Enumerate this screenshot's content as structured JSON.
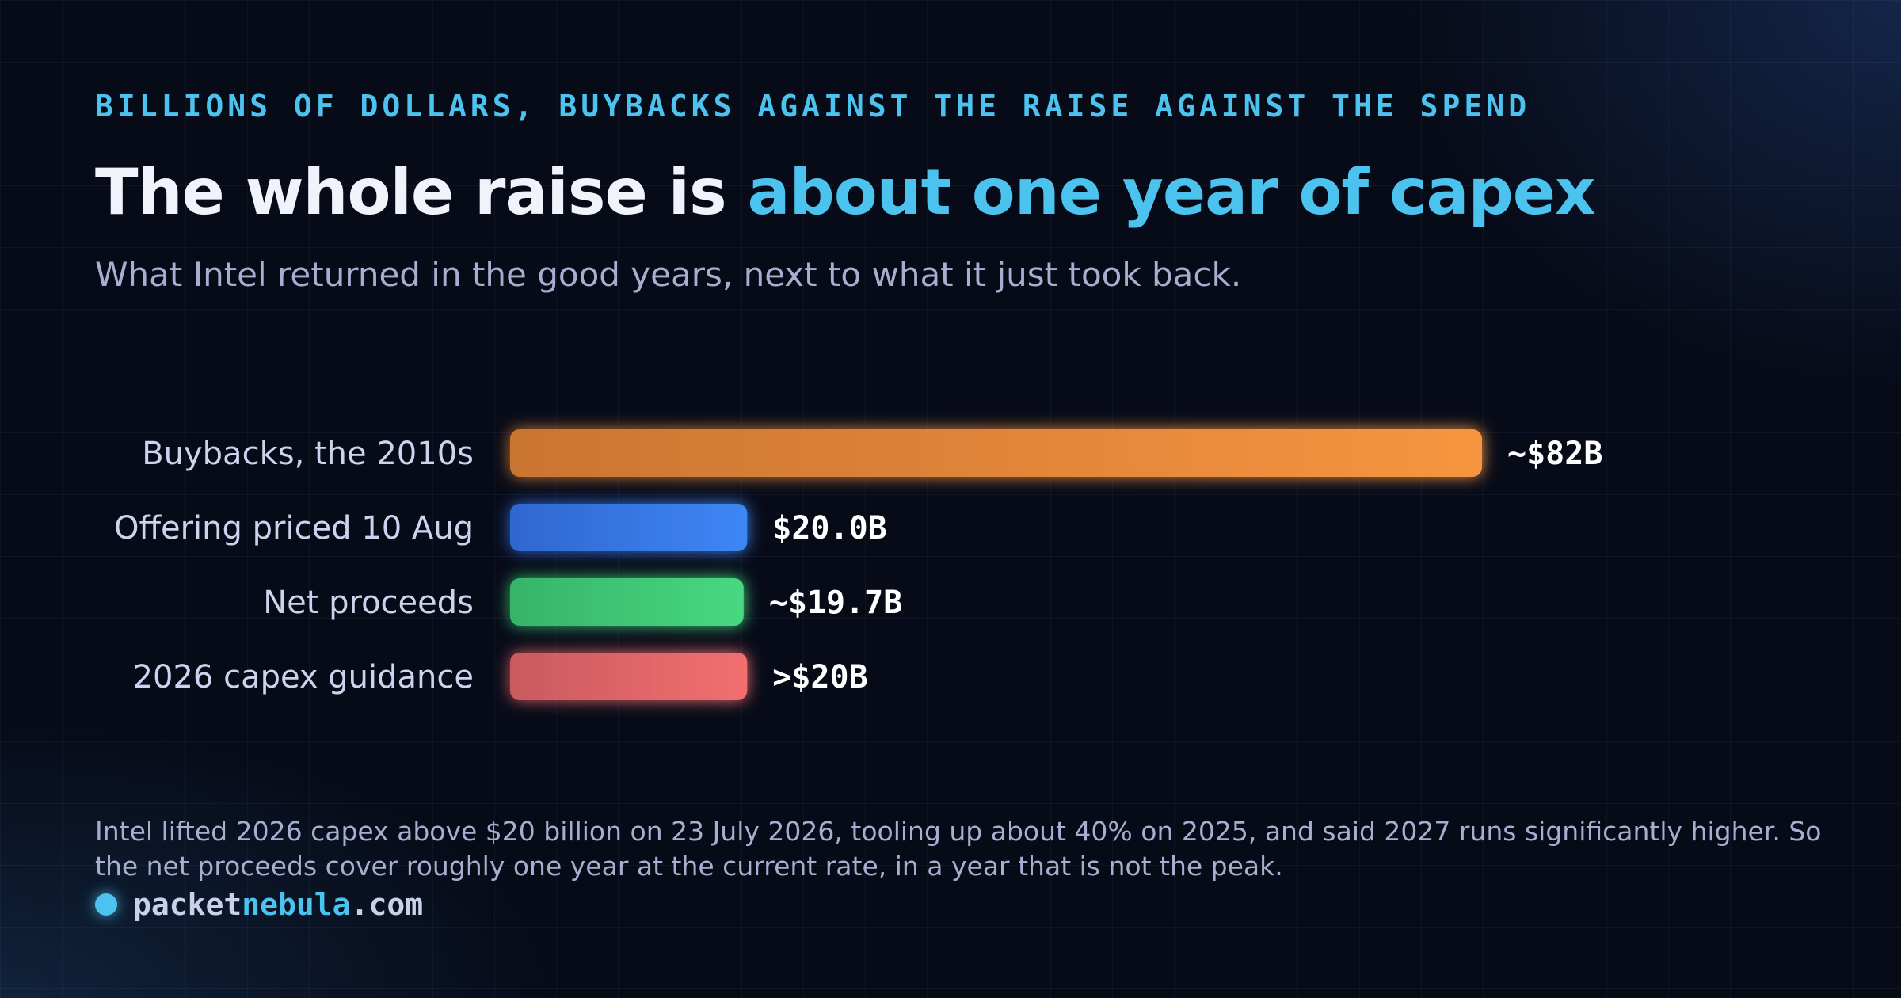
{
  "eyebrow": "BILLIONS OF DOLLARS, BUYBACKS AGAINST THE RAISE AGAINST THE SPEND",
  "title": {
    "lead": "The whole raise is",
    "highlight": "about one year of capex"
  },
  "subtitle": "What Intel returned in the good years, next to what it just took back.",
  "chart_data": {
    "type": "bar",
    "orientation": "horizontal",
    "title": "The whole raise is about one year of capex",
    "subtitle": "What Intel returned in the good years, next to what it just took back.",
    "unit": "billions of dollars",
    "xlim": [
      0,
      82
    ],
    "grid": false,
    "legend": "none",
    "categories": [
      "Buybacks, the 2010s",
      "Offering priced 10 Aug",
      "Net proceeds",
      "2026 capex guidance"
    ],
    "values": [
      82,
      20.0,
      19.7,
      20
    ],
    "value_labels": [
      "~$82B",
      "$20.0B",
      "~$19.7B",
      ">$20B"
    ],
    "colors": [
      [
        "#c97532",
        "#f7953f"
      ],
      [
        "#2f67cf",
        "#3e86f5"
      ],
      [
        "#36b468",
        "#48d882"
      ],
      [
        "#c95a60",
        "#f26f70"
      ]
    ]
  },
  "footnote": "Intel lifted 2026 capex above $20 billion on 23 July 2026, tooling up about 40% on 2025, and said 2027 runs significantly higher. So the net proceeds cover roughly one year at the current rate, in a year that is not the peak.",
  "brand": {
    "name_part1": "packet",
    "name_part2": "nebula",
    "name_part3": ".com"
  }
}
